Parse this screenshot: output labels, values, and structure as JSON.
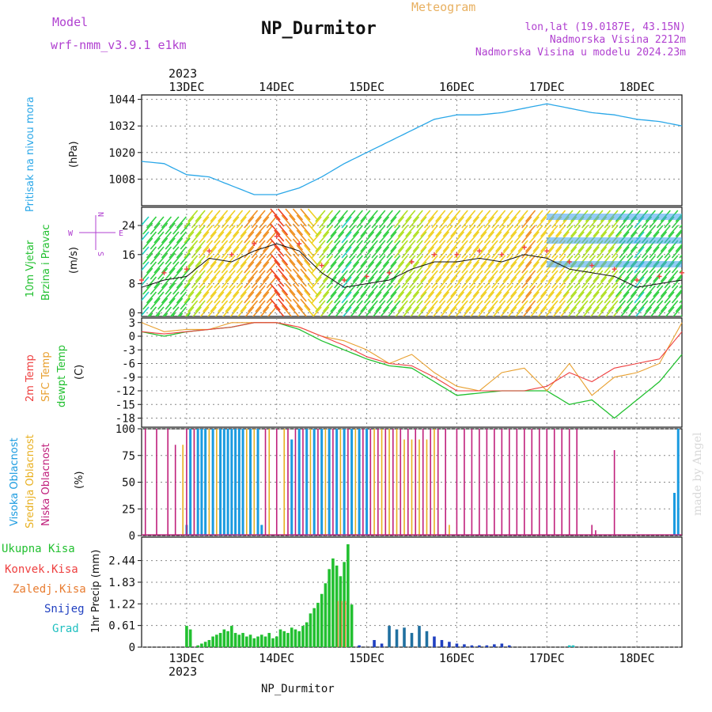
{
  "header": {
    "model_label": "Model",
    "model_name": "wrf-nmm_v3.9.1  e1km",
    "title": "NP_Durmitor",
    "subtitle": "Meteogram",
    "lonlat": "lon,lat (19.0187E, 43.15N)",
    "altitude": "Nadmorska Visina 2212m",
    "model_altitude": "Nadmorska Visina u modelu 2024.23m",
    "watermark": "made by Angel",
    "footer": "NP_Durmitor"
  },
  "colors": {
    "pressure": "#2aa7e8",
    "temp2m": "#ee4040",
    "tsfc": "#e8a030",
    "dewpt": "#22c030",
    "cloud_high": "#1a9be0",
    "cloud_mid": "#e8b020",
    "cloud_low": "#c0207c",
    "precip_total": "#22c030",
    "precip_snow": "#2040c0",
    "precip_graupel": "#20c0c0",
    "label_purple": "#b040d0"
  },
  "chart_data": [
    {
      "type": "line",
      "name": "pressure",
      "ylabel_left": "Pritisak na nivou mora",
      "unit": "(hPa)",
      "year": "2023",
      "day_labels": [
        "13DEC",
        "14DEC",
        "15DEC",
        "16DEC",
        "17DEC",
        "18DEC"
      ],
      "yticks": [
        1008,
        1020,
        1032,
        1044
      ],
      "ylim": [
        996,
        1046
      ],
      "xlim_hours": [
        -12,
        132
      ],
      "series": [
        {
          "x": [
            -12,
            -6,
            0,
            6,
            12,
            18,
            24,
            30,
            36,
            42,
            48,
            54,
            60,
            66,
            72,
            78,
            84,
            90,
            96,
            102,
            108,
            114,
            120,
            126,
            132
          ],
          "values": [
            1016,
            1015,
            1010,
            1009,
            1005,
            1001,
            1001,
            1004,
            1009,
            1015,
            1020,
            1025,
            1030,
            1035,
            1037,
            1037,
            1038,
            1040,
            1042,
            1040,
            1038,
            1037,
            1035,
            1034,
            1032
          ]
        }
      ]
    },
    {
      "type": "line",
      "name": "wind",
      "ylabel_left": [
        "10m Vjetar",
        "Brzina i Pravac"
      ],
      "unit": "(m/s)",
      "compass": [
        "N",
        "E",
        "S",
        "W"
      ],
      "yticks": [
        0,
        8,
        16,
        24
      ],
      "ylim": [
        -1,
        29
      ],
      "series": [
        {
          "name": "speed",
          "x": [
            -12,
            -6,
            0,
            6,
            12,
            18,
            24,
            30,
            36,
            42,
            48,
            54,
            60,
            66,
            72,
            78,
            84,
            90,
            96,
            102,
            108,
            114,
            120,
            126,
            132
          ],
          "values": [
            7,
            9,
            10,
            15,
            14,
            17,
            19,
            17,
            11,
            7,
            8,
            9,
            12,
            14,
            14,
            15,
            14,
            16,
            15,
            12,
            11,
            10,
            7,
            8,
            9
          ]
        }
      ]
    },
    {
      "type": "line",
      "name": "temperature",
      "ylabel_left": [
        "2m Temp",
        "SFC Temp",
        "dewpt Temp"
      ],
      "unit": "(C)",
      "yticks": [
        3,
        0,
        -3,
        -6,
        -9,
        -12,
        -15,
        -18
      ],
      "ylim": [
        -20,
        4
      ],
      "series": [
        {
          "name": "2m Temp",
          "x": [
            -12,
            -6,
            0,
            6,
            12,
            18,
            24,
            30,
            36,
            42,
            48,
            54,
            60,
            66,
            72,
            78,
            84,
            90,
            96,
            102,
            108,
            114,
            120,
            126,
            132
          ],
          "values": [
            1,
            0.5,
            1,
            1.5,
            2,
            3,
            3,
            2,
            0,
            -2,
            -4.5,
            -6,
            -6.5,
            -9,
            -12,
            -12,
            -12,
            -12,
            -11,
            -8,
            -10,
            -7,
            -6,
            -5,
            1
          ]
        },
        {
          "name": "SFC Temp",
          "x": [
            -12,
            -6,
            0,
            6,
            12,
            18,
            24,
            30,
            36,
            42,
            48,
            54,
            60,
            66,
            72,
            78,
            84,
            90,
            96,
            102,
            108,
            114,
            120,
            126,
            132
          ],
          "values": [
            3,
            1,
            1.5,
            1.5,
            3,
            3,
            3,
            2,
            0,
            -1,
            -3,
            -6,
            -4,
            -8,
            -11,
            -12,
            -8,
            -7,
            -12,
            -6,
            -13,
            -9,
            -8,
            -6,
            3
          ]
        },
        {
          "name": "dewpt Temp",
          "x": [
            -12,
            -6,
            0,
            6,
            12,
            18,
            24,
            30,
            36,
            42,
            48,
            54,
            60,
            66,
            72,
            78,
            84,
            90,
            96,
            102,
            108,
            114,
            120,
            126,
            132
          ],
          "values": [
            1,
            0,
            1,
            1.5,
            2,
            3,
            3,
            1.5,
            -1,
            -3,
            -5,
            -6.5,
            -7,
            -10,
            -13,
            -12.5,
            -12,
            -12,
            -12,
            -15,
            -14,
            -18,
            -14,
            -10,
            -4
          ]
        }
      ]
    },
    {
      "type": "bar",
      "name": "cloud",
      "ylabel_left": [
        "Visoka Oblacnost",
        "Srednja Oblacnost",
        "Niska Oblacnost"
      ],
      "unit": "(%)",
      "yticks": [
        0,
        25,
        50,
        75,
        100
      ],
      "ylim": [
        0,
        100
      ],
      "series": [
        {
          "name": "Visoka Oblacnost",
          "x": [
            0,
            1,
            3,
            4,
            5,
            7,
            9,
            10,
            11,
            12,
            13,
            14,
            15,
            17,
            19,
            20,
            28,
            30,
            32,
            34,
            36,
            38,
            40,
            42,
            44,
            46,
            48,
            130,
            131
          ],
          "values": [
            10,
            100,
            100,
            100,
            100,
            100,
            100,
            100,
            100,
            100,
            100,
            100,
            100,
            100,
            100,
            10,
            90,
            100,
            100,
            100,
            100,
            100,
            100,
            100,
            100,
            100,
            100,
            40,
            100
          ]
        },
        {
          "name": "Srednja Oblacnost",
          "x": [
            -1,
            2,
            6,
            8,
            16,
            18,
            22,
            26,
            33,
            37,
            41,
            45,
            50,
            52,
            54,
            56,
            58,
            60,
            62,
            64,
            66,
            70
          ],
          "values": [
            85,
            100,
            100,
            100,
            100,
            100,
            100,
            100,
            100,
            100,
            100,
            100,
            100,
            100,
            100,
            100,
            90,
            90,
            90,
            90,
            100,
            10
          ]
        },
        {
          "name": "Niska Oblacnost",
          "x": [
            -11,
            -8,
            -5,
            -3,
            0,
            2,
            21,
            24,
            27,
            29,
            31,
            35,
            39,
            43,
            47,
            49,
            51,
            53,
            55,
            57,
            59,
            61,
            63,
            65,
            67,
            69,
            72,
            74,
            76,
            78,
            80,
            82,
            84,
            86,
            88,
            90,
            92,
            94,
            96,
            98,
            100,
            102,
            104,
            108,
            109,
            114,
            122
          ],
          "values": [
            100,
            100,
            100,
            85,
            100,
            100,
            100,
            100,
            100,
            100,
            100,
            100,
            100,
            100,
            100,
            100,
            100,
            100,
            100,
            100,
            100,
            100,
            100,
            100,
            100,
            100,
            100,
            100,
            100,
            100,
            100,
            100,
            100,
            100,
            100,
            100,
            100,
            100,
            100,
            100,
            100,
            100,
            100,
            10,
            5,
            80,
            0
          ]
        }
      ]
    },
    {
      "type": "bar",
      "name": "precip",
      "ylabel_left": [
        "Ukupna Kisa",
        "Konvek.Kisa",
        "Zaledj.Kisa",
        "Snijeg",
        "Grad"
      ],
      "ylabel_right": "1hr Precip (mm)",
      "yticks": [
        0,
        0.61,
        1.22,
        1.83,
        2.44
      ],
      "ylim": [
        0,
        3.1
      ],
      "day_labels": [
        "13DEC",
        "14DEC",
        "15DEC",
        "16DEC",
        "17DEC",
        "18DEC"
      ],
      "year": "2023",
      "series": [
        {
          "name": "Ukupna Kisa",
          "x": [
            0,
            1,
            3,
            4,
            5,
            6,
            7,
            8,
            9,
            10,
            11,
            12,
            13,
            14,
            15,
            16,
            17,
            18,
            19,
            20,
            21,
            22,
            23,
            24,
            25,
            26,
            27,
            28,
            29,
            30,
            31,
            32,
            33,
            34,
            35,
            36,
            37,
            38,
            39,
            40,
            41,
            42,
            43,
            44
          ],
          "values": [
            0.6,
            0.5,
            0.05,
            0.1,
            0.15,
            0.2,
            0.3,
            0.35,
            0.4,
            0.5,
            0.45,
            0.6,
            0.4,
            0.35,
            0.4,
            0.3,
            0.35,
            0.25,
            0.3,
            0.35,
            0.3,
            0.4,
            0.25,
            0.3,
            0.5,
            0.45,
            0.4,
            0.55,
            0.5,
            0.45,
            0.6,
            0.7,
            0.95,
            1.1,
            1.25,
            1.5,
            1.8,
            2.2,
            2.5,
            2.3,
            2.0,
            2.4,
            2.9,
            1.2
          ]
        },
        {
          "name": "Snijeg",
          "x": [
            46,
            50,
            52,
            54,
            56,
            58,
            60,
            62,
            64,
            66,
            68,
            70,
            72,
            74,
            76,
            78,
            80,
            82,
            84,
            86
          ],
          "values": [
            0.05,
            0.2,
            0.1,
            0.6,
            0.5,
            0.55,
            0.4,
            0.6,
            0.45,
            0.3,
            0.2,
            0.15,
            0.1,
            0.08,
            0.05,
            0.05,
            0.05,
            0.08,
            0.1,
            0.05
          ]
        },
        {
          "name": "Grad",
          "x": [
            102,
            103
          ],
          "values": [
            0.05,
            0.05
          ]
        }
      ]
    }
  ]
}
